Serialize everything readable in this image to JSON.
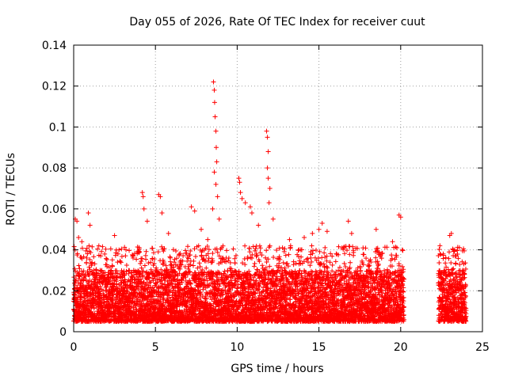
{
  "chart_data": {
    "type": "scatter",
    "title": "Day 055 of 2026, Rate Of TEC Index for receiver cuut",
    "xlabel": "GPS time / hours",
    "ylabel": "ROTI / TECUs",
    "xlim": [
      0,
      25
    ],
    "ylim": [
      0,
      0.14
    ],
    "x_ticks": [
      0,
      5,
      10,
      15,
      20,
      25
    ],
    "y_ticks": [
      0,
      0.02,
      0.04,
      0.06,
      0.08,
      0.1,
      0.12,
      0.14
    ],
    "x_tick_labels": [
      "0",
      "5",
      "10",
      "15",
      "20",
      "25"
    ],
    "y_tick_labels": [
      "0",
      "0.02",
      "0.04",
      "0.06",
      "0.08",
      "0.1",
      "0.12",
      "0.14"
    ],
    "grid": true,
    "marker": "+",
    "color": "#ff0000",
    "data_gaps_hours": [
      [
        20.2,
        22.3
      ]
    ],
    "baseline": {
      "typical_min": 0.005,
      "typical_max": 0.03
    },
    "series": [
      {
        "points": [
          [
            0.1,
            0.055
          ],
          [
            0.2,
            0.054
          ],
          [
            0.3,
            0.046
          ],
          [
            0.5,
            0.044
          ],
          [
            0.9,
            0.058
          ],
          [
            1.0,
            0.052
          ],
          [
            2.5,
            0.047
          ],
          [
            3.2,
            0.04
          ],
          [
            4.2,
            0.068
          ],
          [
            4.25,
            0.066
          ],
          [
            4.3,
            0.06
          ],
          [
            4.5,
            0.054
          ],
          [
            5.2,
            0.067
          ],
          [
            5.3,
            0.066
          ],
          [
            5.4,
            0.058
          ],
          [
            5.8,
            0.048
          ],
          [
            7.2,
            0.061
          ],
          [
            7.4,
            0.059
          ],
          [
            7.8,
            0.05
          ],
          [
            8.2,
            0.045
          ],
          [
            8.55,
            0.122
          ],
          [
            8.6,
            0.118
          ],
          [
            8.62,
            0.112
          ],
          [
            8.65,
            0.105
          ],
          [
            8.7,
            0.098
          ],
          [
            8.72,
            0.09
          ],
          [
            8.75,
            0.083
          ],
          [
            8.6,
            0.078
          ],
          [
            8.7,
            0.072
          ],
          [
            8.8,
            0.066
          ],
          [
            8.5,
            0.06
          ],
          [
            8.9,
            0.055
          ],
          [
            10.1,
            0.075
          ],
          [
            10.15,
            0.073
          ],
          [
            10.2,
            0.068
          ],
          [
            10.3,
            0.065
          ],
          [
            10.5,
            0.063
          ],
          [
            10.8,
            0.061
          ],
          [
            10.9,
            0.058
          ],
          [
            11.3,
            0.052
          ],
          [
            11.8,
            0.098
          ],
          [
            11.85,
            0.095
          ],
          [
            11.9,
            0.088
          ],
          [
            11.85,
            0.08
          ],
          [
            11.9,
            0.075
          ],
          [
            12.0,
            0.07
          ],
          [
            11.95,
            0.063
          ],
          [
            12.2,
            0.055
          ],
          [
            13.2,
            0.045
          ],
          [
            14.1,
            0.046
          ],
          [
            14.6,
            0.048
          ],
          [
            15.0,
            0.05
          ],
          [
            15.2,
            0.053
          ],
          [
            15.5,
            0.049
          ],
          [
            16.8,
            0.054
          ],
          [
            17.0,
            0.048
          ],
          [
            18.5,
            0.05
          ],
          [
            19.5,
            0.044
          ],
          [
            19.9,
            0.057
          ],
          [
            20.0,
            0.056
          ],
          [
            20.1,
            0.04
          ],
          [
            22.4,
            0.042
          ],
          [
            22.6,
            0.038
          ],
          [
            23.0,
            0.047
          ],
          [
            23.1,
            0.048
          ],
          [
            23.3,
            0.04
          ],
          [
            23.8,
            0.03
          ],
          [
            23.9,
            0.028
          ]
        ]
      }
    ]
  }
}
